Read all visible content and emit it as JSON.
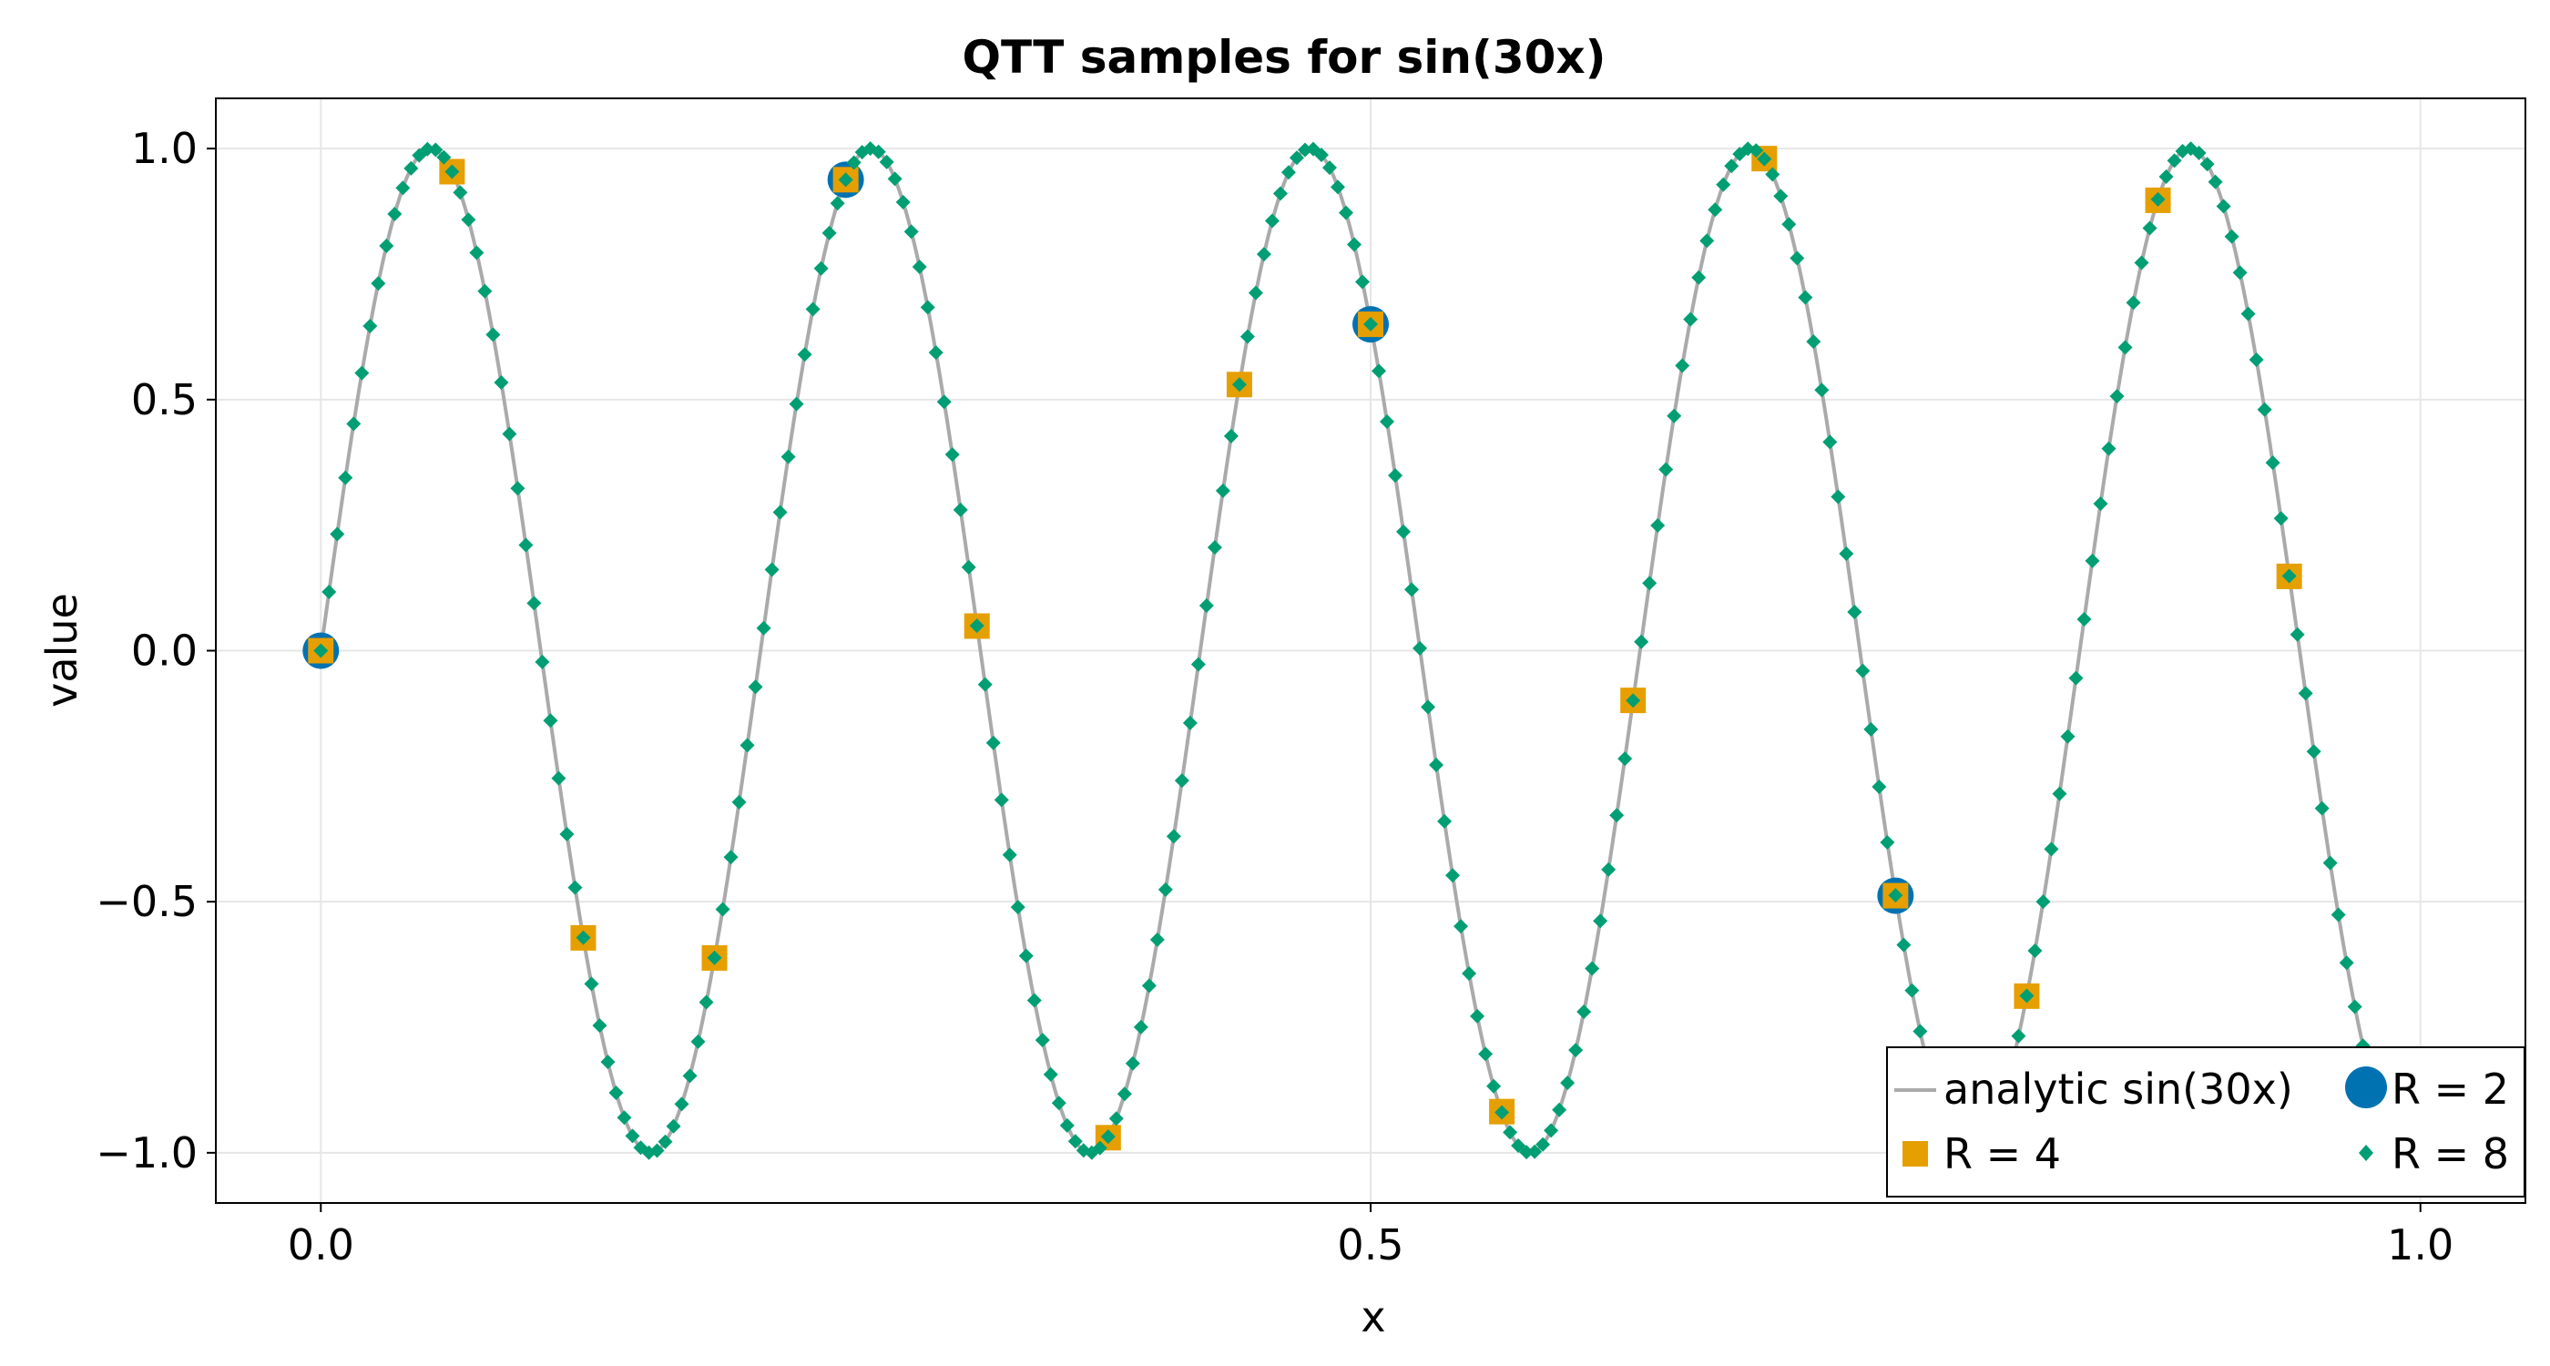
{
  "chart_data": {
    "type": "scatter",
    "title": "QTT samples for sin(30x)",
    "xlabel": "x",
    "ylabel": "value",
    "xlim": [
      -0.05,
      1.05
    ],
    "ylim": [
      -1.1,
      1.1
    ],
    "x_ticks": [
      0.0,
      0.5,
      1.0
    ],
    "x_tick_labels": [
      "0.0",
      "0.5",
      "1.0"
    ],
    "y_ticks": [
      1.0,
      0.5,
      0.0,
      -0.5,
      -1.0
    ],
    "y_tick_labels": [
      "1.0",
      "0.5",
      "0.0",
      "−0.5",
      "−1.0"
    ],
    "grid": true,
    "legend_position": "bottom-right",
    "series": [
      {
        "name": "analytic sin(30x)",
        "kind": "line",
        "color": "#aaaaaa",
        "function": "sin(30x)",
        "x_range": [
          0,
          1
        ]
      },
      {
        "name": "R = 2",
        "kind": "circle",
        "color": "#0072b2",
        "x": [
          0,
          0.25,
          0.5,
          0.75
        ],
        "y": [
          0.0,
          0.938,
          0.65,
          -0.488
        ]
      },
      {
        "name": "R = 4",
        "kind": "square",
        "color": "#e69f00",
        "x": [
          0,
          0.0625,
          0.125,
          0.1875,
          0.25,
          0.3125,
          0.375,
          0.4375,
          0.5,
          0.5625,
          0.625,
          0.6875,
          0.75,
          0.8125,
          0.875,
          0.9375
        ],
        "y": [
          0.0,
          0.954,
          -0.572,
          -0.612,
          0.938,
          0.049,
          -0.97,
          0.53,
          0.65,
          -0.918,
          -0.099,
          0.98,
          -0.488,
          -0.688,
          0.897,
          0.148
        ]
      },
      {
        "name": "R = 8",
        "kind": "diamond",
        "color": "#009e73",
        "function": "sin(30x)",
        "n_points": 256,
        "x_step": 0.00390625
      }
    ]
  }
}
